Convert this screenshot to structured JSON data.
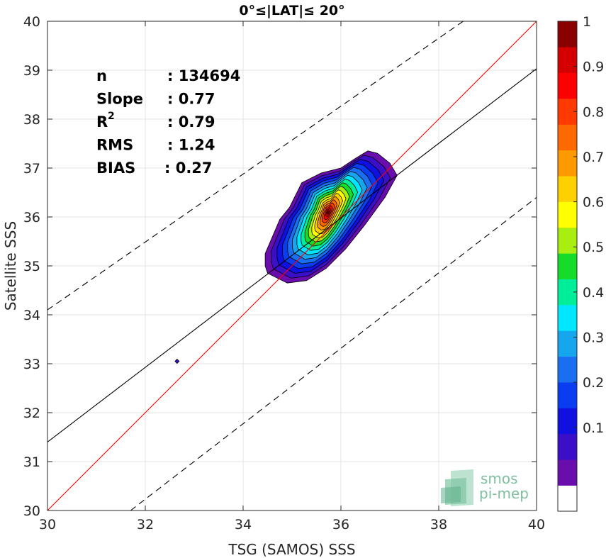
{
  "chart_data": {
    "type": "heatmap",
    "title": "0°≤|LAT|≤ 20°",
    "xlabel": "TSG (SAMOS) SSS",
    "ylabel": "Satellite SSS",
    "xlim": [
      30,
      40
    ],
    "ylim": [
      30,
      40
    ],
    "xticks": [
      "30",
      "32",
      "34",
      "36",
      "38",
      "40"
    ],
    "yticks": [
      "30",
      "31",
      "32",
      "33",
      "34",
      "35",
      "36",
      "37",
      "38",
      "39",
      "40"
    ],
    "grid": true,
    "stats": [
      {
        "label": "n",
        "value": ": 134694"
      },
      {
        "label": "Slope",
        "value": ": 0.77"
      },
      {
        "label": "R",
        "sup": "2",
        "value": ": 0.79"
      },
      {
        "label": "RMS",
        "value": ": 1.24"
      },
      {
        "label": "BIAS",
        "value": ": 0.27"
      }
    ],
    "lines": [
      {
        "kind": "identity",
        "color": "#ff0000",
        "style": "solid",
        "x": [
          30,
          40
        ],
        "y": [
          30,
          40
        ]
      },
      {
        "kind": "regression",
        "color": "#000000",
        "style": "solid",
        "x": [
          30,
          40
        ],
        "y": [
          31.4,
          39.03
        ]
      },
      {
        "kind": "upper-bound",
        "color": "#000000",
        "style": "dashed",
        "x": [
          30,
          38.5
        ],
        "y": [
          34.1,
          40.0
        ]
      },
      {
        "kind": "lower-bound",
        "color": "#000000",
        "style": "dashed",
        "x": [
          31.7,
          40
        ],
        "y": [
          30.0,
          36.4
        ]
      }
    ],
    "density_peak": {
      "x": 35.72,
      "y": 36.1
    },
    "isolated_point": {
      "x": 32.65,
      "y": 33.05
    },
    "colorbar": {
      "ticks": [
        "0.1",
        "0.2",
        "0.3",
        "0.4",
        "0.5",
        "0.6",
        "0.7",
        "0.8",
        "0.9",
        "1"
      ],
      "levels": [
        "#ffffff",
        "#6a0dad",
        "#3b0fc7",
        "#1010e0",
        "#0a3cf0",
        "#1a6ef0",
        "#16a6ee",
        "#00e6ff",
        "#00ee9a",
        "#14dc28",
        "#a8ee10",
        "#ffff00",
        "#ffd000",
        "#ff9900",
        "#ff6a00",
        "#ff3a00",
        "#ff0000",
        "#d40000",
        "#8a0000"
      ]
    }
  },
  "logo": {
    "line1": "smos",
    "line2": "pi-mep"
  }
}
